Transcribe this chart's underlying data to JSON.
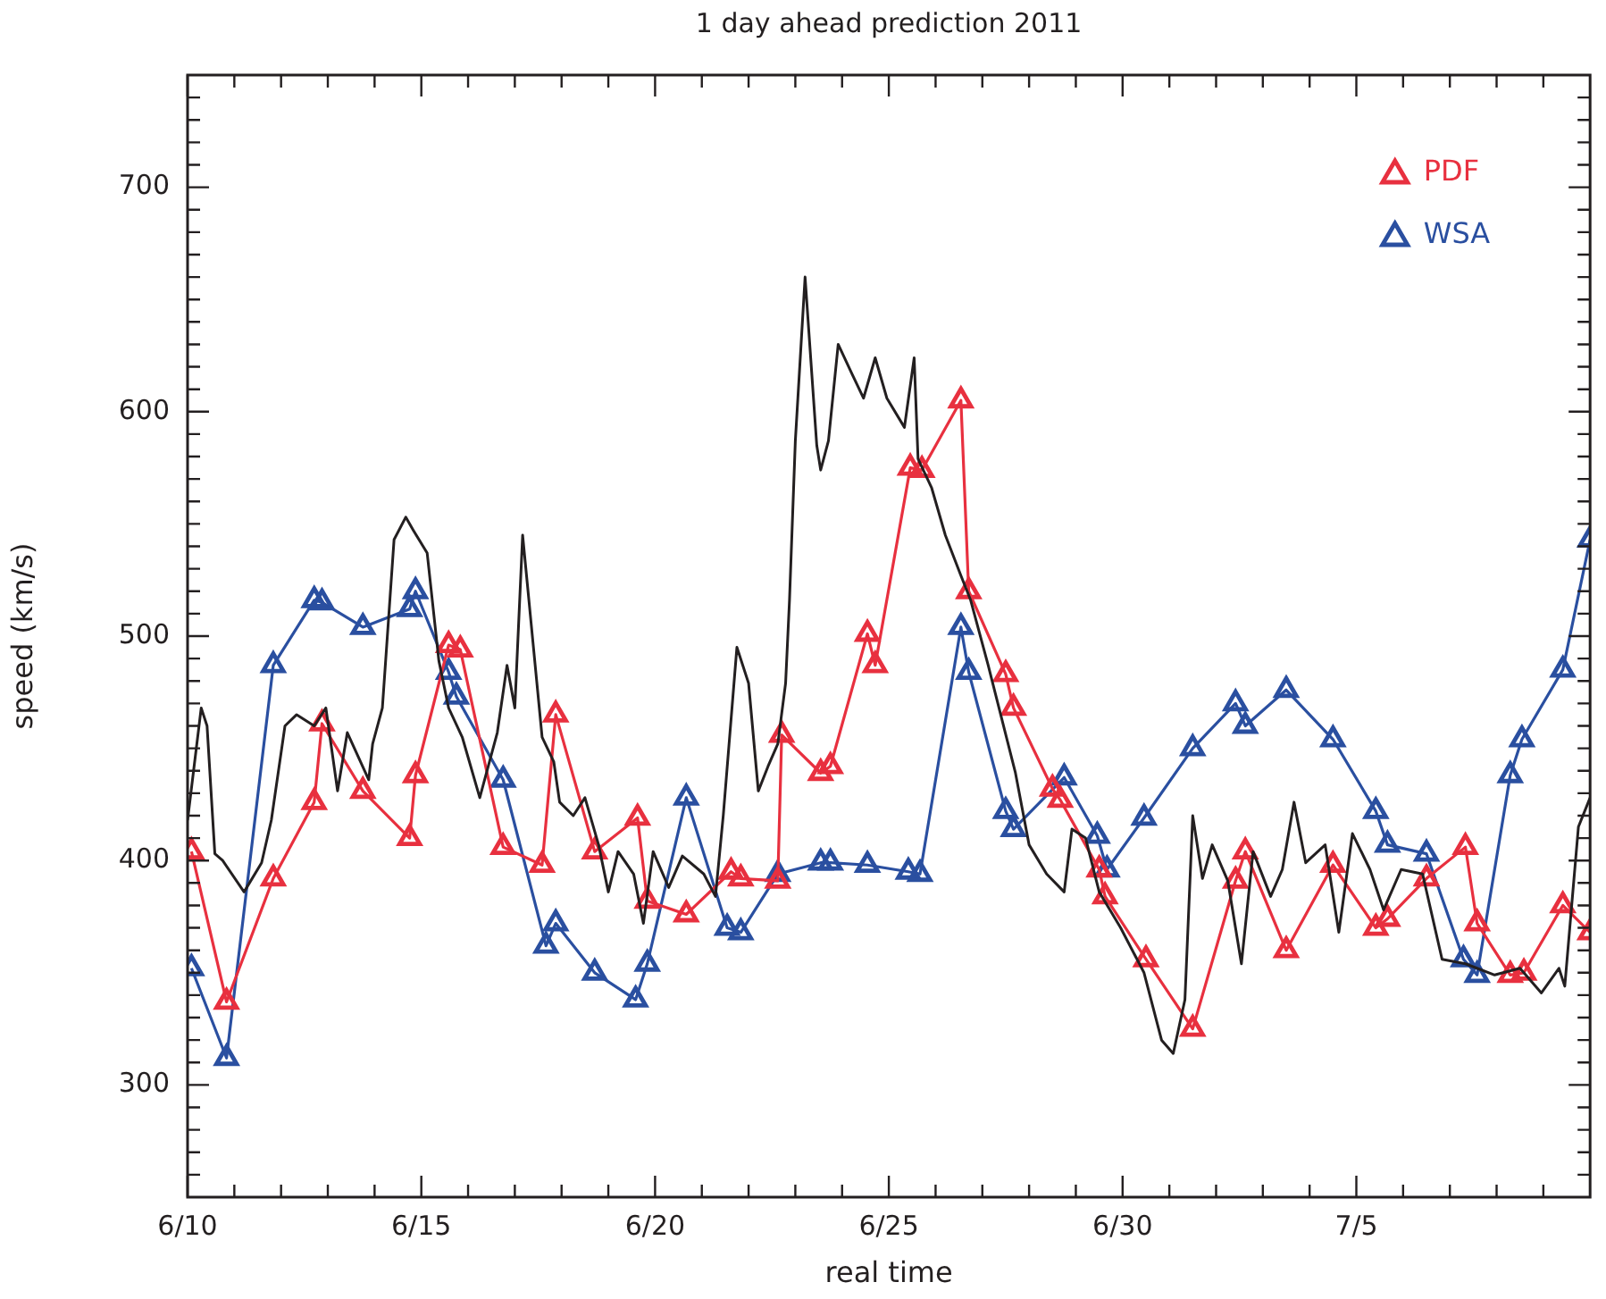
{
  "chart_data": {
    "type": "line",
    "title": "1 day ahead prediction 2011",
    "xlabel": "real time",
    "ylabel": "speed (km/s)",
    "xlim": [
      "--06-10",
      "--07-10"
    ],
    "xticks": [
      {
        "value": "--06-10",
        "label": "6/10"
      },
      {
        "value": "--06-11",
        "label": null
      },
      {
        "value": "--06-12",
        "label": null
      },
      {
        "value": "--06-13",
        "label": null
      },
      {
        "value": "--06-14",
        "label": null
      },
      {
        "value": "--06-15",
        "label": "6/15"
      },
      {
        "value": "--06-16",
        "label": null
      },
      {
        "value": "--06-17",
        "label": null
      },
      {
        "value": "--06-18",
        "label": null
      },
      {
        "value": "--06-19",
        "label": null
      },
      {
        "value": "--06-20",
        "label": "6/20"
      },
      {
        "value": "--06-21",
        "label": null
      },
      {
        "value": "--06-22",
        "label": null
      },
      {
        "value": "--06-23",
        "label": null
      },
      {
        "value": "--06-24",
        "label": null
      },
      {
        "value": "--06-25",
        "label": "6/25"
      },
      {
        "value": "--06-26",
        "label": null
      },
      {
        "value": "--06-27",
        "label": null
      },
      {
        "value": "--06-28",
        "label": null
      },
      {
        "value": "--06-29",
        "label": null
      },
      {
        "value": "--06-30",
        "label": "6/30"
      },
      {
        "value": "--07-01",
        "label": null
      },
      {
        "value": "--07-02",
        "label": null
      },
      {
        "value": "--07-03",
        "label": null
      },
      {
        "value": "--07-04",
        "label": null
      },
      {
        "value": "--07-05",
        "label": "7/5"
      },
      {
        "value": "--07-06",
        "label": null
      },
      {
        "value": "--07-07",
        "label": null
      },
      {
        "value": "--07-08",
        "label": null
      },
      {
        "value": "--07-09",
        "label": null
      }
    ],
    "ylim": [
      250,
      750
    ],
    "yticks": [
      {
        "value": 260,
        "label": null
      },
      {
        "value": 270,
        "label": null
      },
      {
        "value": 280,
        "label": null
      },
      {
        "value": 290,
        "label": null
      },
      300,
      {
        "value": 310,
        "label": null
      },
      {
        "value": 320,
        "label": null
      },
      {
        "value": 330,
        "label": null
      },
      {
        "value": 340,
        "label": null
      },
      {
        "value": 350,
        "label": null
      },
      {
        "value": 360,
        "label": null
      },
      {
        "value": 370,
        "label": null
      },
      {
        "value": 380,
        "label": null
      },
      {
        "value": 390,
        "label": null
      },
      400,
      {
        "value": 410,
        "label": null
      },
      {
        "value": 420,
        "label": null
      },
      {
        "value": 430,
        "label": null
      },
      {
        "value": 440,
        "label": null
      },
      {
        "value": 450,
        "label": null
      },
      {
        "value": 460,
        "label": null
      },
      {
        "value": 470,
        "label": null
      },
      {
        "value": 480,
        "label": null
      },
      {
        "value": 490,
        "label": null
      },
      500,
      {
        "value": 510,
        "label": null
      },
      {
        "value": 520,
        "label": null
      },
      {
        "value": 530,
        "label": null
      },
      {
        "value": 540,
        "label": null
      },
      {
        "value": 550,
        "label": null
      },
      {
        "value": 560,
        "label": null
      },
      {
        "value": 570,
        "label": null
      },
      {
        "value": 580,
        "label": null
      },
      {
        "value": 590,
        "label": null
      },
      600,
      {
        "value": 610,
        "label": null
      },
      {
        "value": 620,
        "label": null
      },
      {
        "value": 630,
        "label": null
      },
      {
        "value": 640,
        "label": null
      },
      {
        "value": 650,
        "label": null
      },
      {
        "value": 660,
        "label": null
      },
      {
        "value": 670,
        "label": null
      },
      {
        "value": 680,
        "label": null
      },
      {
        "value": 690,
        "label": null
      },
      700,
      {
        "value": 710,
        "label": null
      },
      {
        "value": 720,
        "label": null
      },
      {
        "value": 730,
        "label": null
      },
      {
        "value": 740,
        "label": null
      }
    ],
    "grid": false,
    "legend": "top right",
    "series": [
      {
        "color": "#231f20",
        "marker": "none",
        "x": [
          "--06-10T00:00",
          "--06-10T07:00",
          "--06-10T10:00",
          "--06-10T14:00",
          "--06-10T18:00",
          "--06-11T05:00",
          "--06-11T14:00",
          "--06-11T19:00",
          "--06-12T02:00",
          "--06-12T08:00",
          "--06-12T17:00",
          "--06-12T23:00",
          "--06-13T05:00",
          "--06-13T10:00",
          "--06-13T21:00",
          "--06-13T23:00",
          "--06-14T04:00",
          "--06-14T10:00",
          "--06-14T16:00",
          "--06-14T20:00",
          "--06-15T03:00",
          "--06-15T09:00",
          "--06-15T14:00",
          "--06-15T21:00",
          "--06-16T06:00",
          "--06-16T15:00",
          "--06-16T20:00",
          "--06-17T00:00",
          "--06-17T04:00",
          "--06-17T14:00",
          "--06-17T20:00",
          "--06-17T23:00",
          "--06-18T06:00",
          "--06-18T12:00",
          "--06-18T19:00",
          "--06-19T00:00",
          "--06-19T05:00",
          "--06-19T13:00",
          "--06-19T18:00",
          "--06-19T23:00",
          "--06-20T07:00",
          "--06-20T14:00",
          "--06-21T01:00",
          "--06-21T07:00",
          "--06-21T11:00",
          "--06-21T18:00",
          "--06-22T00:00",
          "--06-22T05:00",
          "--06-22T10:00",
          "--06-22T15:00",
          "--06-22T19:00",
          "--06-22T21:00",
          "--06-23T00:00",
          "--06-23T05:00",
          "--06-23T11:00",
          "--06-23T13:00",
          "--06-23T17:00",
          "--06-23T22:00",
          "--06-24T05:00",
          "--06-24T11:00",
          "--06-24T17:00",
          "--06-24T23:00",
          "--06-25T08:00",
          "--06-25T13:00",
          "--06-25T15:00",
          "--06-25T22:00",
          "--06-26T05:00",
          "--06-26T13:00",
          "--06-26T18:00",
          "--06-27T03:00",
          "--06-27T10:00",
          "--06-27T17:00",
          "--06-28T00:00",
          "--06-28T09:00",
          "--06-28T18:00",
          "--06-28T22:00",
          "--06-29T05:00",
          "--06-29T12:00",
          "--06-29T23:00",
          "--06-30T11:00",
          "--06-30T20:00",
          "--07-01T02:00",
          "--07-01T08:00",
          "--07-01T12:00",
          "--07-01T17:00",
          "--07-01T22:00",
          "--07-02T06:00",
          "--07-02T13:00",
          "--07-02T19:00",
          "--07-03T04:00",
          "--07-03T10:00",
          "--07-03T16:00",
          "--07-03T22:00",
          "--07-04T08:00",
          "--07-04T15:00",
          "--07-04T22:00",
          "--07-05T07:00",
          "--07-05T14:00",
          "--07-05T23:00",
          "--07-06T10:00",
          "--07-06T20:00",
          "--07-07T08:00",
          "--07-07T23:00",
          "--07-08T12:00",
          "--07-08T23:00",
          "--07-09T08:00",
          "--07-09T11:00",
          "--07-09T18:00",
          "--07-10T00:00"
        ],
        "values": [
          418,
          468,
          460,
          403,
          400,
          386,
          399,
          418,
          460,
          465,
          460,
          468,
          431,
          457,
          436,
          452,
          468,
          543,
          553,
          547,
          537,
          489,
          468,
          455,
          428,
          457,
          487,
          468,
          545,
          455,
          444,
          426,
          420,
          428,
          407,
          386,
          404,
          394,
          372,
          404,
          388,
          402,
          394,
          384,
          420,
          495,
          479,
          431,
          442,
          452,
          479,
          516,
          587,
          660,
          585,
          574,
          587,
          630,
          617,
          606,
          624,
          606,
          593,
          624,
          579,
          566,
          545,
          527,
          516,
          487,
          463,
          439,
          407,
          394,
          386,
          414,
          410,
          386,
          370,
          350,
          320,
          314,
          338,
          420,
          392,
          407,
          391,
          354,
          404,
          384,
          396,
          426,
          399,
          407,
          368,
          412,
          396,
          378,
          396,
          394,
          356,
          354,
          349,
          352,
          341,
          352,
          344,
          415,
          428
        ]
      },
      {
        "name": "PDF",
        "color": "#e8303f",
        "marker": "triangle",
        "x": [
          "--06-10T02:00",
          "--06-10T20:00",
          "--06-11T20:00",
          "--06-12T17:00",
          "--06-12T21:00",
          "--06-13T18:00",
          "--06-14T18:00",
          "--06-14T21:00",
          "--06-15T14:00",
          "--06-15T20:00",
          "--06-16T18:00",
          "--06-17T14:00",
          "--06-17T21:00",
          "--06-18T17:00",
          "--06-19T15:00",
          "--06-19T20:00",
          "--06-20T16:00",
          "--06-21T15:00",
          "--06-21T20:00",
          "--06-22T15:00",
          "--06-22T17:00",
          "--06-23T13:00",
          "--06-23T18:00",
          "--06-24T13:00",
          "--06-24T17:00",
          "--06-25T11:00",
          "--06-25T17:00",
          "--06-26T13:00",
          "--06-26T17:00",
          "--06-27T12:00",
          "--06-27T16:00",
          "--06-28T12:00",
          "--06-28T16:00",
          "--06-29T12:00",
          "--06-29T15:00",
          "--06-30T12:00",
          "--07-01T12:00",
          "--07-02T10:00",
          "--07-02T15:00",
          "--07-03T12:00",
          "--07-04T12:00",
          "--07-05T10:00",
          "--07-05T16:00",
          "--07-06T12:00",
          "--07-07T08:00",
          "--07-07T14:00",
          "--07-08T07:00",
          "--07-08T14:00",
          "--07-09T10:00",
          "--07-10T00:00"
        ],
        "values": [
          404,
          337,
          392,
          426,
          461,
          431,
          410,
          438,
          496,
          494,
          406,
          398,
          465,
          404,
          419,
          382,
          376,
          395,
          392,
          391,
          456,
          439,
          442,
          501,
          487,
          575,
          574,
          605,
          520,
          483,
          468,
          432,
          427,
          396,
          384,
          356,
          325,
          391,
          404,
          360,
          398,
          370,
          374,
          392,
          406,
          372,
          349,
          350,
          380,
          368
        ]
      },
      {
        "name": "WSA",
        "color": "#2a4fa0",
        "marker": "triangle",
        "x": [
          "--06-10T02:00",
          "--06-10T20:00",
          "--06-11T20:00",
          "--06-12T17:00",
          "--06-12T21:00",
          "--06-13T18:00",
          "--06-14T18:00",
          "--06-14T21:00",
          "--06-15T14:00",
          "--06-15T18:00",
          "--06-16T18:00",
          "--06-17T16:00",
          "--06-17T21:00",
          "--06-18T17:00",
          "--06-19T14:00",
          "--06-19T20:00",
          "--06-20T16:00",
          "--06-21T13:00",
          "--06-21T20:00",
          "--06-22T15:00",
          "--06-23T13:00",
          "--06-23T18:00",
          "--06-24T13:00",
          "--06-25T10:00",
          "--06-25T16:00",
          "--06-26T13:00",
          "--06-26T17:00",
          "--06-27T12:00",
          "--06-27T16:00",
          "--06-28T18:00",
          "--06-29T11:00",
          "--06-29T16:00",
          "--06-30T11:00",
          "--07-01T12:00",
          "--07-02T10:00",
          "--07-02T15:00",
          "--07-03T12:00",
          "--07-04T12:00",
          "--07-05T10:00",
          "--07-05T16:00",
          "--07-06T12:00",
          "--07-07T07:00",
          "--07-07T14:00",
          "--07-08T07:00",
          "--07-08T13:00",
          "--07-09T10:00",
          "--07-10T00:00"
        ],
        "values": [
          352,
          312,
          487,
          516,
          515,
          504,
          512,
          520,
          484,
          473,
          436,
          362,
          372,
          350,
          338,
          354,
          428,
          370,
          368,
          394,
          399,
          399,
          398,
          395,
          394,
          504,
          484,
          422,
          414,
          437,
          411,
          396,
          419,
          450,
          470,
          460,
          476,
          454,
          422,
          407,
          403,
          356,
          349,
          438,
          454,
          485,
          543
        ]
      }
    ]
  }
}
